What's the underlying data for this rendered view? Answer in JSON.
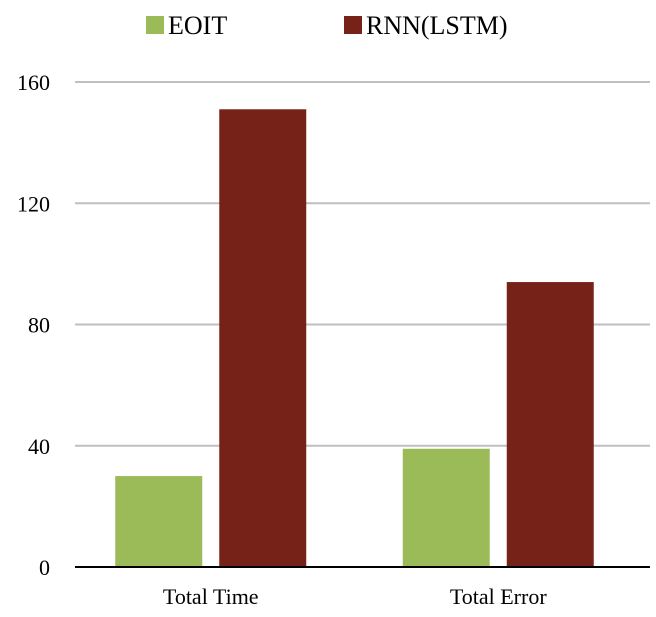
{
  "chart_data": {
    "type": "bar",
    "title": "",
    "xlabel": "",
    "ylabel": "",
    "categories": [
      "Total Time",
      "Total Error"
    ],
    "series": [
      {
        "name": "EOIT",
        "color": "#9BBB59",
        "values": [
          30,
          39
        ]
      },
      {
        "name": "RNN(LSTM)",
        "color": "#772219",
        "values": [
          151,
          94
        ]
      }
    ],
    "ylim": [
      0,
      160
    ],
    "yticks": [
      "0",
      "40",
      "80",
      "120",
      "160"
    ],
    "grid": true,
    "legend_position": "top"
  }
}
